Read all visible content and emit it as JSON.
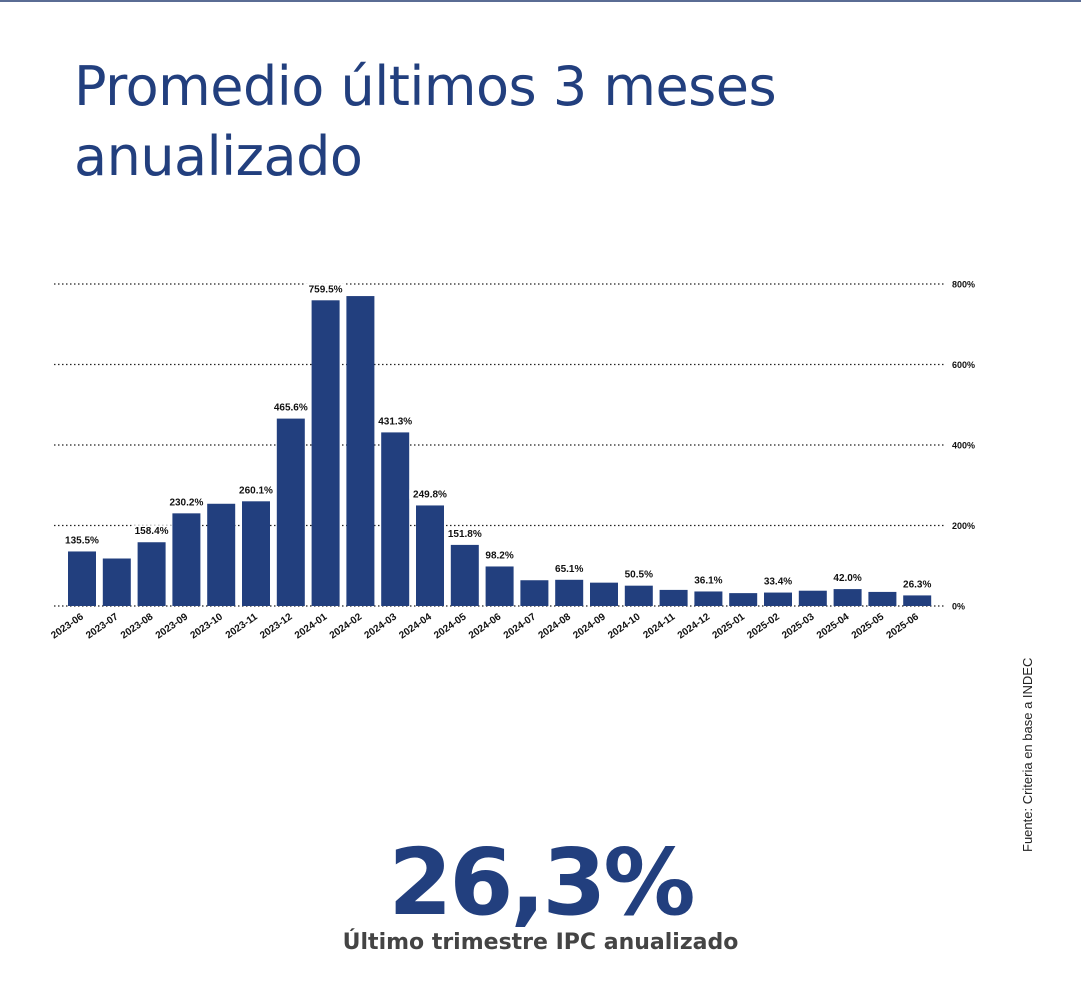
{
  "title": "Promedio últimos 3 meses anualizado",
  "source": "Fuente: Criteria en base a INDEC",
  "highlight": {
    "value": "26,3%",
    "caption": "Último trimestre IPC anualizado"
  },
  "colors": {
    "bar": "#223f7e",
    "title": "#223f7e",
    "caption": "#444444"
  },
  "chart_data": {
    "type": "bar",
    "categories": [
      "2023-06",
      "2023-07",
      "2023-08",
      "2023-09",
      "2023-10",
      "2023-11",
      "2023-12",
      "2024-01",
      "2024-02",
      "2024-03",
      "2024-04",
      "2024-05",
      "2024-06",
      "2024-07",
      "2024-08",
      "2024-09",
      "2024-10",
      "2024-11",
      "2024-12",
      "2025-01",
      "2025-02",
      "2025-03",
      "2025-04",
      "2025-05",
      "2025-06"
    ],
    "values": [
      135.5,
      118,
      158.4,
      230.2,
      254,
      260.1,
      465.6,
      759.5,
      770,
      431.3,
      249.8,
      151.8,
      98.2,
      64,
      65.1,
      58,
      50.5,
      40,
      36.1,
      32,
      33.4,
      38,
      42.0,
      35,
      26.3
    ],
    "data_labels": [
      "135.5%",
      "",
      "158.4%",
      "230.2%",
      "",
      "260.1%",
      "465.6%",
      "759.5%",
      "",
      "431.3%",
      "249.8%",
      "151.8%",
      "98.2%",
      "",
      "65.1%",
      "",
      "50.5%",
      "",
      "36.1%",
      "",
      "33.4%",
      "",
      "42.0%",
      "",
      "26.3%"
    ],
    "y_ticks": [
      0,
      200,
      400,
      600,
      800
    ],
    "y_tick_labels": [
      "0%",
      "200%",
      "400%",
      "600%",
      "800%"
    ],
    "ylim": [
      0,
      800
    ],
    "y_axis_position": "right",
    "grid": "dotted horizontal",
    "legend": "none"
  }
}
